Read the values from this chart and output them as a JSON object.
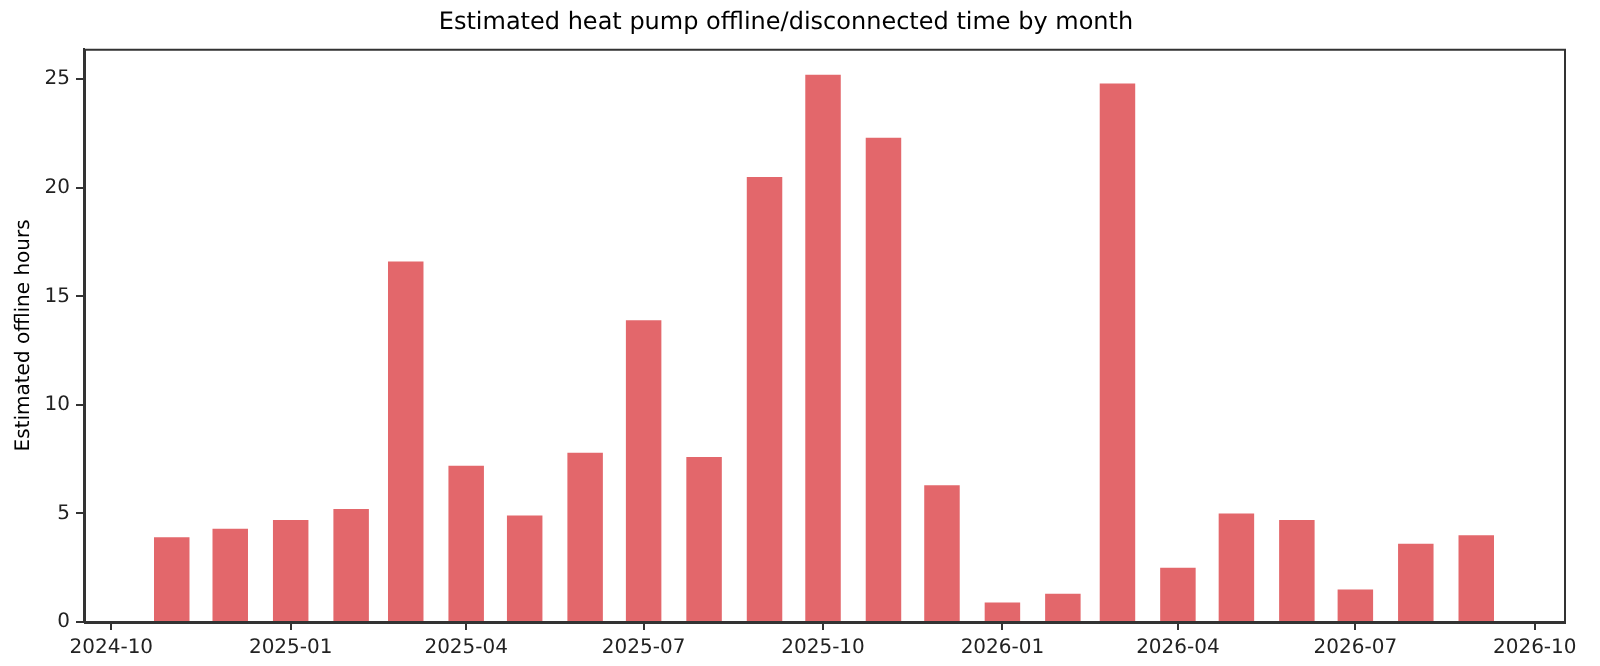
{
  "chart_data": {
    "type": "bar",
    "title": "Estimated heat pump offline/disconnected time by month",
    "ylabel": "Estimated offline hours",
    "x": [
      "2024-11",
      "2024-12",
      "2025-01",
      "2025-02",
      "2025-03",
      "2025-04",
      "2025-05",
      "2025-06",
      "2025-07",
      "2025-08",
      "2025-09",
      "2025-10",
      "2025-11",
      "2025-12",
      "2026-01",
      "2026-02",
      "2026-03",
      "2026-04",
      "2026-05",
      "2026-06",
      "2026-07",
      "2026-08",
      "2026-09"
    ],
    "values": [
      3.9,
      4.3,
      4.7,
      5.2,
      16.6,
      7.2,
      4.9,
      7.8,
      13.9,
      7.6,
      20.5,
      25.2,
      22.3,
      6.3,
      0.9,
      1.3,
      24.8,
      2.5,
      5.0,
      4.7,
      1.5,
      3.6,
      4.0
    ],
    "color": "#e3676b",
    "xlim": [
      "2024-09-17",
      "2026-10-16"
    ],
    "xticks": [
      "2024-10",
      "2025-01",
      "2025-04",
      "2025-07",
      "2025-10",
      "2026-01",
      "2026-04",
      "2026-07",
      "2026-10"
    ],
    "ylim": [
      0,
      26.4
    ],
    "yticks": [
      0,
      5,
      10,
      15,
      20,
      25
    ],
    "grid": false,
    "legend": false
  }
}
